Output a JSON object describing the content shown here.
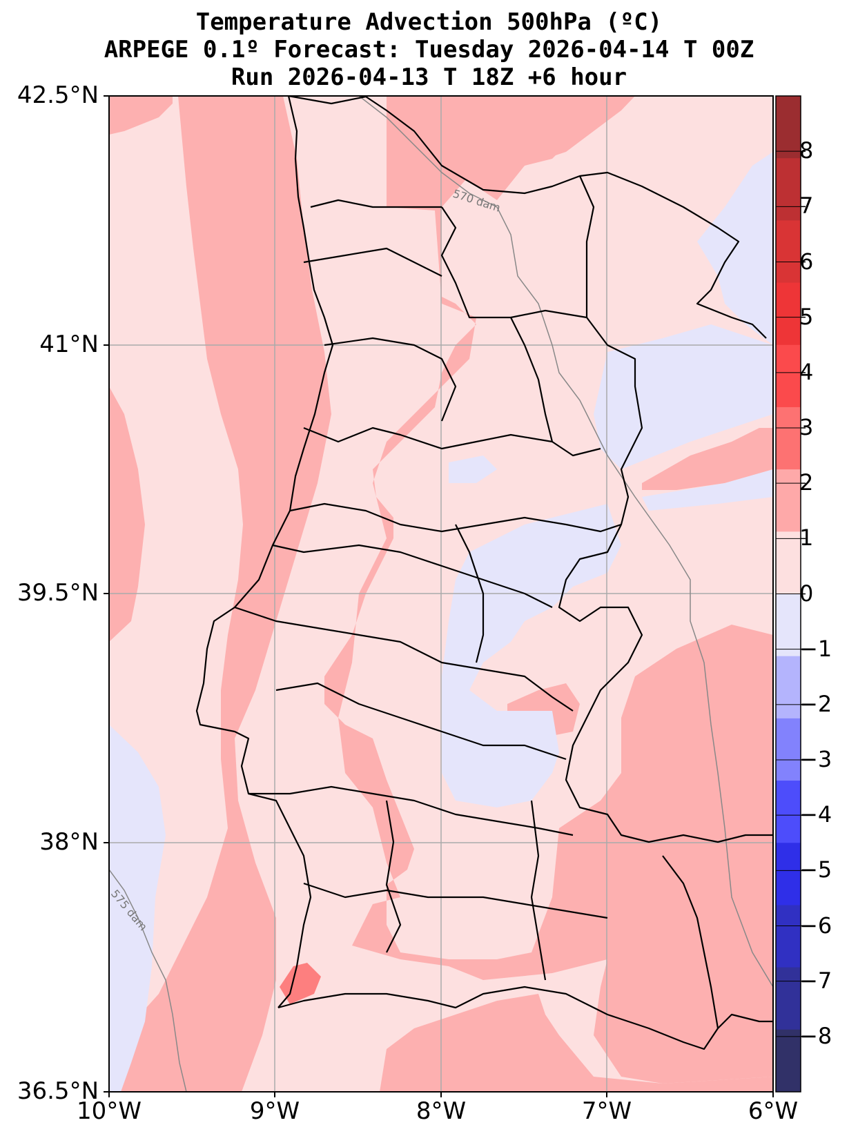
{
  "title": {
    "line1": "Temperature Advection  500hPa (ºC)",
    "line2": "ARPEGE 0.1º Forecast: Tuesday 2026-04-14 T 00Z",
    "line3": "Run 2026-04-13 T 18Z +6 hour"
  },
  "axes": {
    "lat_labels": [
      "42.5°N",
      "41°N",
      "39.5°N",
      "38°N",
      "36.5°N"
    ],
    "lon_labels": [
      "10°W",
      "9°W",
      "8°W",
      "7°W",
      "6°W"
    ],
    "lat_range": [
      36.5,
      42.5
    ],
    "lon_range": [
      -10,
      -6
    ],
    "grid": true
  },
  "contours": {
    "label_570": "570 dam",
    "label_575": "575 dam"
  },
  "colorbar": {
    "ticks": [
      "8",
      "7",
      "6",
      "5",
      "4",
      "3",
      "2",
      "1",
      "0",
      "−1",
      "−2",
      "−3",
      "−4",
      "−5",
      "−6",
      "−7",
      "−8"
    ],
    "colors": [
      "#9b2d30",
      "#bd3033",
      "#d93435",
      "#ee3537",
      "#fb4a4c",
      "#fd7272",
      "#fea9a9",
      "#fde0e0",
      "#e5e5fb",
      "#b4b4fd",
      "#8282fd",
      "#4d4dfb",
      "#2f2fe8",
      "#3030c2",
      "#313199",
      "#313168"
    ]
  },
  "colors": {
    "pos_0_1": "#fde0e0",
    "pos_1_2": "#fdb0b0",
    "pos_2_3": "#fd7f7f",
    "neg_0_1": "#e5e5fb",
    "border": "#000000",
    "grid": "#aaaaaa",
    "contour": "#888888"
  }
}
